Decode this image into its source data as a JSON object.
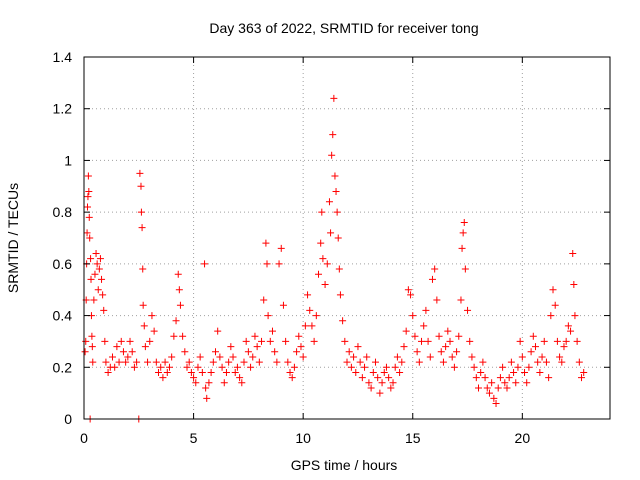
{
  "chart_data": {
    "type": "scatter",
    "title": "Day 363 of 2022, SRMTID for receiver tong",
    "xlabel": "GPS time / hours",
    "ylabel": "SRMTID / TECUs",
    "xlim": [
      0,
      24
    ],
    "ylim": [
      0,
      1.4
    ],
    "xticks": [
      0,
      5,
      10,
      15,
      20
    ],
    "xtick_labels": [
      "0",
      "5",
      "10",
      "15",
      "20"
    ],
    "yticks": [
      0,
      0.2,
      0.4,
      0.6,
      0.8,
      1.0,
      1.2,
      1.4
    ],
    "ytick_labels": [
      "0",
      "0.2",
      "0.4",
      "0.6",
      "0.8",
      "1",
      "1.2",
      "1.4"
    ],
    "grid": true,
    "marker": "+",
    "color": "#ff0000",
    "series": [
      {
        "name": "SRMTID",
        "points": [
          [
            0.05,
            0.26
          ],
          [
            0.08,
            0.3
          ],
          [
            0.1,
            0.46
          ],
          [
            0.12,
            0.6
          ],
          [
            0.14,
            0.72
          ],
          [
            0.16,
            0.82
          ],
          [
            0.18,
            0.86
          ],
          [
            0.2,
            0.94
          ],
          [
            0.22,
            0.88
          ],
          [
            0.24,
            0.78
          ],
          [
            0.26,
            0.7
          ],
          [
            0.28,
            0.0
          ],
          [
            0.3,
            0.62
          ],
          [
            0.32,
            0.54
          ],
          [
            0.34,
            0.4
          ],
          [
            0.36,
            0.32
          ],
          [
            0.38,
            0.28
          ],
          [
            0.4,
            0.22
          ],
          [
            0.45,
            0.46
          ],
          [
            0.5,
            0.56
          ],
          [
            0.55,
            0.64
          ],
          [
            0.6,
            0.6
          ],
          [
            0.65,
            0.5
          ],
          [
            0.7,
            0.58
          ],
          [
            0.75,
            0.62
          ],
          [
            0.8,
            0.54
          ],
          [
            0.85,
            0.48
          ],
          [
            0.9,
            0.42
          ],
          [
            0.95,
            0.3
          ],
          [
            1.0,
            0.22
          ],
          [
            1.1,
            0.18
          ],
          [
            1.2,
            0.2
          ],
          [
            1.3,
            0.24
          ],
          [
            1.4,
            0.2
          ],
          [
            1.5,
            0.28
          ],
          [
            1.6,
            0.22
          ],
          [
            1.7,
            0.3
          ],
          [
            1.8,
            0.26
          ],
          [
            1.9,
            0.22
          ],
          [
            2.0,
            0.24
          ],
          [
            2.1,
            0.3
          ],
          [
            2.2,
            0.26
          ],
          [
            2.3,
            0.2
          ],
          [
            2.4,
            0.22
          ],
          [
            2.5,
            0.0
          ],
          [
            2.55,
            0.95
          ],
          [
            2.6,
            0.9
          ],
          [
            2.62,
            0.8
          ],
          [
            2.65,
            0.74
          ],
          [
            2.68,
            0.58
          ],
          [
            2.7,
            0.44
          ],
          [
            2.75,
            0.36
          ],
          [
            2.8,
            0.28
          ],
          [
            2.9,
            0.22
          ],
          [
            3.0,
            0.3
          ],
          [
            3.1,
            0.4
          ],
          [
            3.2,
            0.34
          ],
          [
            3.3,
            0.22
          ],
          [
            3.4,
            0.18
          ],
          [
            3.5,
            0.2
          ],
          [
            3.6,
            0.16
          ],
          [
            3.7,
            0.22
          ],
          [
            3.8,
            0.18
          ],
          [
            3.9,
            0.2
          ],
          [
            4.0,
            0.24
          ],
          [
            4.1,
            0.32
          ],
          [
            4.2,
            0.38
          ],
          [
            4.3,
            0.56
          ],
          [
            4.35,
            0.5
          ],
          [
            4.4,
            0.44
          ],
          [
            4.5,
            0.32
          ],
          [
            4.6,
            0.26
          ],
          [
            4.7,
            0.2
          ],
          [
            4.8,
            0.22
          ],
          [
            4.9,
            0.18
          ],
          [
            5.0,
            0.16
          ],
          [
            5.1,
            0.14
          ],
          [
            5.2,
            0.2
          ],
          [
            5.3,
            0.24
          ],
          [
            5.4,
            0.18
          ],
          [
            5.5,
            0.6
          ],
          [
            5.55,
            0.12
          ],
          [
            5.6,
            0.08
          ],
          [
            5.7,
            0.14
          ],
          [
            5.8,
            0.18
          ],
          [
            5.9,
            0.22
          ],
          [
            6.0,
            0.26
          ],
          [
            6.1,
            0.34
          ],
          [
            6.2,
            0.24
          ],
          [
            6.3,
            0.2
          ],
          [
            6.4,
            0.14
          ],
          [
            6.5,
            0.18
          ],
          [
            6.6,
            0.22
          ],
          [
            6.7,
            0.28
          ],
          [
            6.8,
            0.24
          ],
          [
            6.9,
            0.18
          ],
          [
            7.0,
            0.2
          ],
          [
            7.1,
            0.16
          ],
          [
            7.2,
            0.14
          ],
          [
            7.3,
            0.22
          ],
          [
            7.4,
            0.3
          ],
          [
            7.5,
            0.26
          ],
          [
            7.6,
            0.2
          ],
          [
            7.7,
            0.24
          ],
          [
            7.8,
            0.32
          ],
          [
            7.9,
            0.28
          ],
          [
            8.0,
            0.22
          ],
          [
            8.1,
            0.3
          ],
          [
            8.2,
            0.46
          ],
          [
            8.3,
            0.68
          ],
          [
            8.35,
            0.6
          ],
          [
            8.4,
            0.4
          ],
          [
            8.5,
            0.3
          ],
          [
            8.6,
            0.34
          ],
          [
            8.7,
            0.26
          ],
          [
            8.8,
            0.22
          ],
          [
            8.9,
            0.6
          ],
          [
            9.0,
            0.66
          ],
          [
            9.1,
            0.44
          ],
          [
            9.2,
            0.3
          ],
          [
            9.3,
            0.22
          ],
          [
            9.4,
            0.18
          ],
          [
            9.5,
            0.16
          ],
          [
            9.6,
            0.2
          ],
          [
            9.7,
            0.26
          ],
          [
            9.8,
            0.32
          ],
          [
            9.9,
            0.28
          ],
          [
            10.0,
            0.24
          ],
          [
            10.1,
            0.36
          ],
          [
            10.2,
            0.48
          ],
          [
            10.3,
            0.42
          ],
          [
            10.4,
            0.36
          ],
          [
            10.5,
            0.3
          ],
          [
            10.6,
            0.4
          ],
          [
            10.7,
            0.56
          ],
          [
            10.8,
            0.68
          ],
          [
            10.85,
            0.8
          ],
          [
            10.9,
            0.62
          ],
          [
            11.0,
            0.52
          ],
          [
            11.1,
            0.6
          ],
          [
            11.2,
            0.84
          ],
          [
            11.25,
            0.72
          ],
          [
            11.3,
            1.02
          ],
          [
            11.35,
            1.1
          ],
          [
            11.4,
            1.24
          ],
          [
            11.45,
            0.94
          ],
          [
            11.5,
            0.88
          ],
          [
            11.55,
            0.8
          ],
          [
            11.6,
            0.7
          ],
          [
            11.65,
            0.58
          ],
          [
            11.7,
            0.48
          ],
          [
            11.8,
            0.38
          ],
          [
            11.9,
            0.3
          ],
          [
            12.0,
            0.22
          ],
          [
            12.1,
            0.26
          ],
          [
            12.2,
            0.2
          ],
          [
            12.3,
            0.24
          ],
          [
            12.4,
            0.18
          ],
          [
            12.5,
            0.28
          ],
          [
            12.6,
            0.22
          ],
          [
            12.7,
            0.16
          ],
          [
            12.8,
            0.2
          ],
          [
            12.9,
            0.24
          ],
          [
            13.0,
            0.14
          ],
          [
            13.1,
            0.12
          ],
          [
            13.2,
            0.18
          ],
          [
            13.3,
            0.22
          ],
          [
            13.4,
            0.16
          ],
          [
            13.5,
            0.1
          ],
          [
            13.6,
            0.14
          ],
          [
            13.7,
            0.18
          ],
          [
            13.8,
            0.2
          ],
          [
            13.9,
            0.16
          ],
          [
            14.0,
            0.12
          ],
          [
            14.1,
            0.14
          ],
          [
            14.2,
            0.2
          ],
          [
            14.3,
            0.24
          ],
          [
            14.4,
            0.18
          ],
          [
            14.5,
            0.22
          ],
          [
            14.6,
            0.28
          ],
          [
            14.7,
            0.34
          ],
          [
            14.8,
            0.5
          ],
          [
            14.9,
            0.48
          ],
          [
            15.0,
            0.4
          ],
          [
            15.1,
            0.32
          ],
          [
            15.2,
            0.26
          ],
          [
            15.3,
            0.22
          ],
          [
            15.4,
            0.3
          ],
          [
            15.5,
            0.36
          ],
          [
            15.6,
            0.42
          ],
          [
            15.7,
            0.3
          ],
          [
            15.8,
            0.24
          ],
          [
            15.9,
            0.54
          ],
          [
            16.0,
            0.58
          ],
          [
            16.1,
            0.46
          ],
          [
            16.2,
            0.32
          ],
          [
            16.3,
            0.26
          ],
          [
            16.4,
            0.22
          ],
          [
            16.5,
            0.28
          ],
          [
            16.6,
            0.34
          ],
          [
            16.7,
            0.3
          ],
          [
            16.8,
            0.24
          ],
          [
            16.9,
            0.2
          ],
          [
            17.0,
            0.26
          ],
          [
            17.1,
            0.32
          ],
          [
            17.2,
            0.46
          ],
          [
            17.25,
            0.66
          ],
          [
            17.3,
            0.72
          ],
          [
            17.35,
            0.76
          ],
          [
            17.4,
            0.58
          ],
          [
            17.5,
            0.42
          ],
          [
            17.6,
            0.3
          ],
          [
            17.7,
            0.24
          ],
          [
            17.8,
            0.2
          ],
          [
            17.9,
            0.16
          ],
          [
            18.0,
            0.12
          ],
          [
            18.1,
            0.18
          ],
          [
            18.2,
            0.22
          ],
          [
            18.3,
            0.16
          ],
          [
            18.4,
            0.12
          ],
          [
            18.5,
            0.1
          ],
          [
            18.6,
            0.14
          ],
          [
            18.7,
            0.08
          ],
          [
            18.8,
            0.06
          ],
          [
            18.9,
            0.12
          ],
          [
            19.0,
            0.16
          ],
          [
            19.1,
            0.2
          ],
          [
            19.2,
            0.14
          ],
          [
            19.3,
            0.12
          ],
          [
            19.4,
            0.16
          ],
          [
            19.5,
            0.22
          ],
          [
            19.6,
            0.18
          ],
          [
            19.7,
            0.14
          ],
          [
            19.8,
            0.2
          ],
          [
            19.9,
            0.3
          ],
          [
            20.0,
            0.24
          ],
          [
            20.1,
            0.18
          ],
          [
            20.2,
            0.14
          ],
          [
            20.3,
            0.2
          ],
          [
            20.4,
            0.26
          ],
          [
            20.5,
            0.32
          ],
          [
            20.6,
            0.28
          ],
          [
            20.7,
            0.22
          ],
          [
            20.8,
            0.18
          ],
          [
            20.9,
            0.24
          ],
          [
            21.0,
            0.3
          ],
          [
            21.1,
            0.22
          ],
          [
            21.2,
            0.16
          ],
          [
            21.3,
            0.4
          ],
          [
            21.4,
            0.5
          ],
          [
            21.5,
            0.44
          ],
          [
            21.6,
            0.3
          ],
          [
            21.7,
            0.24
          ],
          [
            21.8,
            0.22
          ],
          [
            21.9,
            0.28
          ],
          [
            22.0,
            0.3
          ],
          [
            22.1,
            0.36
          ],
          [
            22.2,
            0.34
          ],
          [
            22.3,
            0.64
          ],
          [
            22.35,
            0.52
          ],
          [
            22.4,
            0.4
          ],
          [
            22.5,
            0.3
          ],
          [
            22.6,
            0.22
          ],
          [
            22.7,
            0.16
          ],
          [
            22.8,
            0.18
          ]
        ]
      }
    ]
  }
}
